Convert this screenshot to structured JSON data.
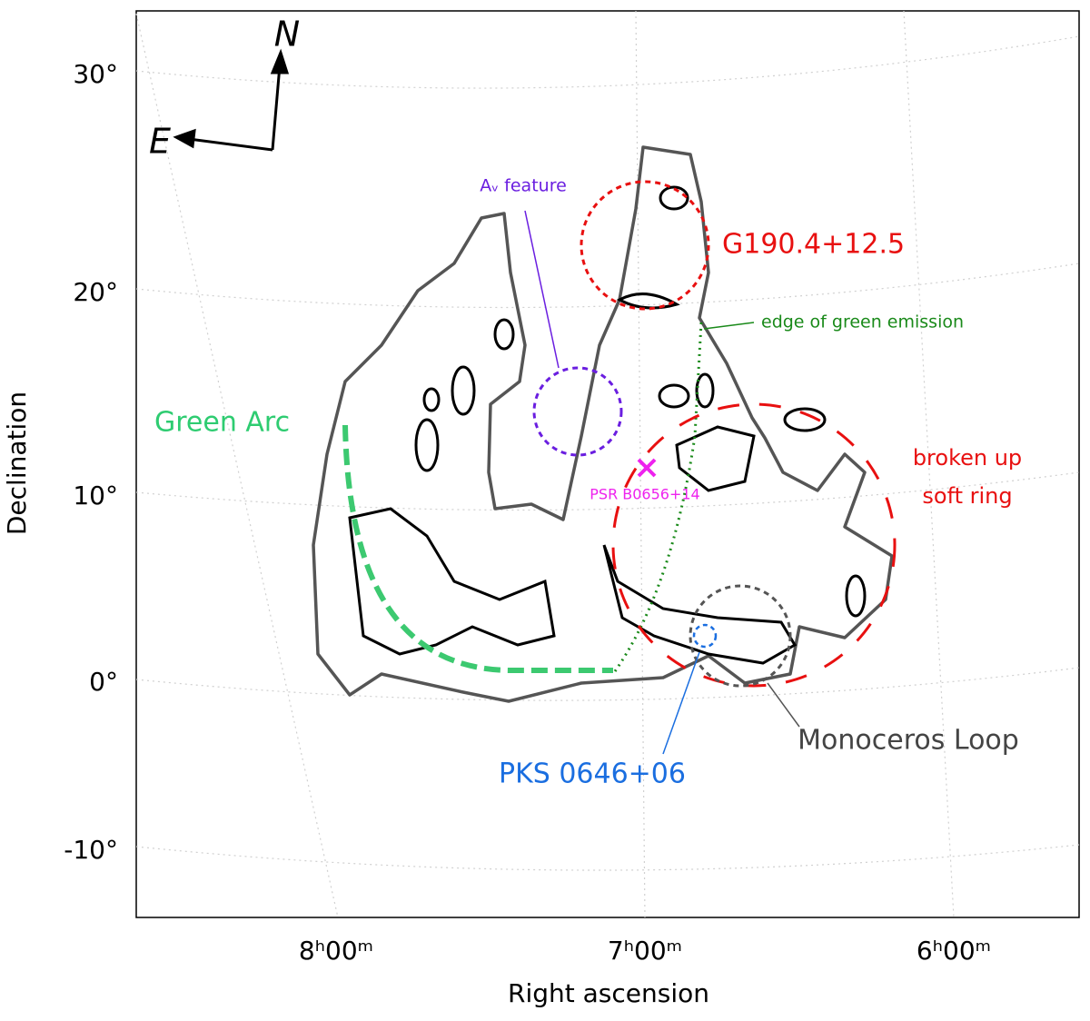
{
  "axes": {
    "x_label": "Right ascension",
    "y_label": "Declination",
    "x_ticks": [
      "8ʰ00ᵐ",
      "7ʰ00ᵐ",
      "6ʰ00ᵐ"
    ],
    "y_ticks": [
      "30°",
      "20°",
      "10°",
      "0°",
      "-10°"
    ]
  },
  "compass": {
    "north": "N",
    "east": "E"
  },
  "annotations": {
    "g190": "G190.4+12.5",
    "av_feature": "Aᵥ feature",
    "edge": "edge of green emission",
    "green_arc": "Green Arc",
    "broken_ring": [
      "broken up",
      "soft ring"
    ],
    "psr": "PSR B0656+14",
    "pks": "PKS 0646+06",
    "monoceros": "Monoceros Loop"
  }
}
